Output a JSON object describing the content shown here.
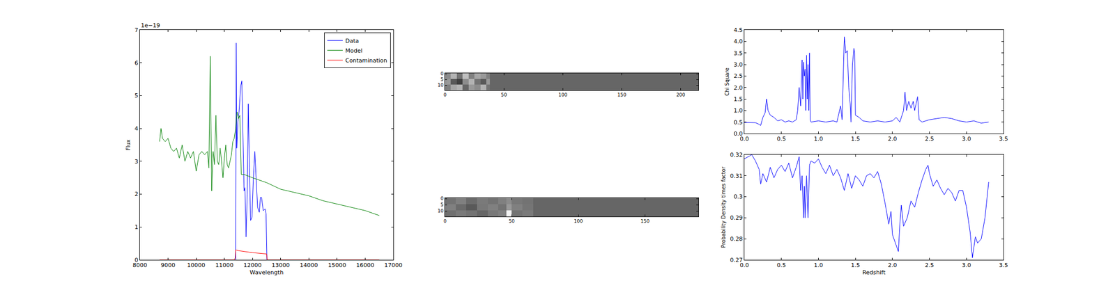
{
  "chart_data": [
    {
      "type": "line",
      "xlabel": "Wavelength",
      "ylabel": "Flux",
      "xlim": [
        8000,
        17000
      ],
      "xticks": [
        8000,
        9000,
        10000,
        11000,
        12000,
        13000,
        14000,
        15000,
        16000,
        17000
      ],
      "ylim": [
        0,
        7
      ],
      "yticks": [
        0,
        1,
        2,
        3,
        4,
        5,
        6,
        7
      ],
      "annotations": [
        "1e−19"
      ],
      "legend": "upper right",
      "series": [
        {
          "name": "Data",
          "color": "#0000ff",
          "x": [
            11400,
            11420,
            11440,
            11480,
            11520,
            11580,
            11620,
            11660,
            11700,
            11730,
            11770,
            11810,
            11850,
            11890,
            11930,
            11980,
            12030,
            12080,
            12120,
            12180,
            12240,
            12280,
            12320,
            12380,
            12450,
            12480,
            12510
          ],
          "values": [
            0,
            6.6,
            3.4,
            4.2,
            4.5,
            5.3,
            5.45,
            4.0,
            2.1,
            2.2,
            0.7,
            2.0,
            4.75,
            2.8,
            1.2,
            1.3,
            2.5,
            3.3,
            2.6,
            1.6,
            1.45,
            1.9,
            1.9,
            1.5,
            1.55,
            1.4,
            0
          ]
        },
        {
          "name": "Model",
          "color": "#008000",
          "x": [
            8700,
            8750,
            8800,
            8900,
            9000,
            9100,
            9200,
            9300,
            9400,
            9500,
            9600,
            9700,
            9800,
            9900,
            10000,
            10100,
            10200,
            10300,
            10400,
            10450,
            10500,
            10550,
            10600,
            10650,
            10700,
            10750,
            10800,
            10850,
            10900,
            10950,
            11000,
            11050,
            11100,
            11150,
            11200,
            11250,
            11300,
            11350,
            11400,
            11450,
            11500,
            11550,
            11600,
            11700,
            12000,
            12500,
            13000,
            13500,
            14000,
            14500,
            15000,
            15500,
            16000,
            16500
          ],
          "values": [
            3.6,
            4.0,
            3.7,
            3.6,
            3.7,
            3.4,
            3.3,
            3.4,
            3.1,
            3.5,
            3.0,
            3.3,
            3.1,
            3.3,
            2.7,
            3.2,
            3.3,
            3.2,
            3.3,
            2.8,
            6.2,
            2.1,
            3.3,
            2.9,
            4.4,
            3.0,
            2.9,
            3.4,
            3.0,
            2.5,
            3.1,
            3.5,
            2.9,
            2.8,
            3.0,
            3.2,
            3.6,
            3.7,
            4.0,
            4.5,
            4.3,
            4.4,
            2.6,
            2.6,
            2.5,
            2.35,
            2.15,
            2.05,
            1.95,
            1.8,
            1.7,
            1.6,
            1.5,
            1.35
          ]
        },
        {
          "name": "Contamination",
          "color": "#ff0000",
          "x": [
            8700,
            11350,
            11380,
            11400,
            11420,
            11500,
            12000,
            12500,
            12520,
            16500
          ],
          "values": [
            0,
            0,
            0.05,
            0.3,
            0.3,
            0.28,
            0.22,
            0.18,
            0,
            0
          ]
        }
      ]
    },
    {
      "type": "heatmap",
      "xlim": [
        0,
        215
      ],
      "xticks": [
        0,
        50,
        100,
        150,
        200
      ],
      "ylim": [
        14.5,
        -0.5
      ],
      "yticks": [
        0,
        5,
        10
      ],
      "zlim": [
        0,
        1
      ],
      "x_edges": [
        0,
        5,
        10,
        15,
        20,
        25,
        30,
        35,
        38,
        215
      ],
      "y_edges": [
        -0.5,
        4.5,
        9.5,
        14.5
      ],
      "cells": [
        [
          0.55,
          0.7,
          0.45,
          0.75,
          0.5,
          0.65,
          0.6,
          0.5,
          0.4
        ],
        [
          0.6,
          0.35,
          0.25,
          0.55,
          0.7,
          0.45,
          0.35,
          0.6,
          0.4
        ],
        [
          0.5,
          0.65,
          0.7,
          0.4,
          0.6,
          0.55,
          0.7,
          0.45,
          0.4
        ]
      ]
    },
    {
      "type": "heatmap",
      "xlim": [
        0,
        190
      ],
      "xticks": [
        0,
        50,
        100,
        150
      ],
      "ylim": [
        14.5,
        -0.5
      ],
      "yticks": [
        0,
        5,
        10
      ],
      "zlim": [
        0,
        1
      ],
      "x_edges": [
        0,
        8,
        16,
        24,
        32,
        40,
        46,
        50,
        58,
        66,
        190
      ],
      "y_edges": [
        -0.5,
        4.5,
        9.5,
        14.5
      ],
      "cells": [
        [
          0.45,
          0.5,
          0.42,
          0.48,
          0.45,
          0.5,
          0.55,
          0.47,
          0.45,
          0.4
        ],
        [
          0.5,
          0.42,
          0.35,
          0.47,
          0.5,
          0.45,
          0.6,
          0.5,
          0.46,
          0.4
        ],
        [
          0.44,
          0.48,
          0.45,
          0.4,
          0.47,
          0.5,
          0.95,
          0.45,
          0.48,
          0.4
        ]
      ]
    },
    {
      "type": "line",
      "ylabel": "Chi Square",
      "xlim": [
        0,
        3.5
      ],
      "xticks": [
        {
          "value": 0,
          "label": "0.0"
        },
        0.5,
        {
          "value": 1,
          "label": "1.0"
        },
        1.5,
        {
          "value": 2,
          "label": "2.0"
        },
        2.5,
        {
          "value": 3,
          "label": "3.0"
        },
        3.5
      ],
      "ylim": [
        0,
        4.5
      ],
      "yticks": [
        {
          "value": 0,
          "label": "0.0"
        },
        0.5,
        {
          "value": 1,
          "label": "1.0"
        },
        1.5,
        {
          "value": 2,
          "label": "2.0"
        },
        2.5,
        {
          "value": 3,
          "label": "3.0"
        },
        3.5,
        {
          "value": 4,
          "label": "4.0"
        },
        4.5
      ],
      "series": [
        {
          "color": "#0000ff",
          "x": [
            0.0,
            0.1,
            0.15,
            0.2,
            0.22,
            0.25,
            0.28,
            0.3,
            0.32,
            0.35,
            0.4,
            0.45,
            0.5,
            0.55,
            0.6,
            0.65,
            0.7,
            0.72,
            0.74,
            0.76,
            0.78,
            0.79,
            0.8,
            0.81,
            0.82,
            0.83,
            0.84,
            0.85,
            0.86,
            0.87,
            0.88,
            0.89,
            0.9,
            1.0,
            1.1,
            1.2,
            1.25,
            1.3,
            1.32,
            1.34,
            1.35,
            1.37,
            1.39,
            1.41,
            1.43,
            1.44,
            1.46,
            1.48,
            1.49,
            1.5,
            1.55,
            1.6,
            1.7,
            1.8,
            1.9,
            2.0,
            2.05,
            2.1,
            2.15,
            2.17,
            2.19,
            2.22,
            2.25,
            2.28,
            2.3,
            2.32,
            2.34,
            2.36,
            2.4,
            2.45,
            2.5,
            2.6,
            2.7,
            2.8,
            2.9,
            3.0,
            3.1,
            3.2,
            3.3
          ],
          "values": [
            0.48,
            0.48,
            0.47,
            0.4,
            0.35,
            0.7,
            0.9,
            1.5,
            1.0,
            0.8,
            0.7,
            0.55,
            0.6,
            0.5,
            0.55,
            0.5,
            0.6,
            1.0,
            2.0,
            1.2,
            3.2,
            1.5,
            3.1,
            2.5,
            2.8,
            1.0,
            3.4,
            1.5,
            3.0,
            1.0,
            3.5,
            0.6,
            0.5,
            0.55,
            0.5,
            0.55,
            0.5,
            1.2,
            0.6,
            3.0,
            4.2,
            3.5,
            3.6,
            2.0,
            1.3,
            0.5,
            3.0,
            3.7,
            3.5,
            0.8,
            0.7,
            0.55,
            0.5,
            0.55,
            0.5,
            0.55,
            0.7,
            0.5,
            1.0,
            1.8,
            1.0,
            1.4,
            1.1,
            1.4,
            1.0,
            1.3,
            1.6,
            0.6,
            0.5,
            0.55,
            0.6,
            0.65,
            0.7,
            0.65,
            0.55,
            0.5,
            0.55,
            0.45,
            0.5
          ]
        }
      ]
    },
    {
      "type": "line",
      "xlabel": "Redshift",
      "ylabel": "Probability Density times factor",
      "xlim": [
        0,
        3.5
      ],
      "xticks": [
        {
          "value": 0,
          "label": "0.0"
        },
        0.5,
        {
          "value": 1,
          "label": "1.0"
        },
        1.5,
        {
          "value": 2,
          "label": "2.0"
        },
        2.5,
        {
          "value": 3,
          "label": "3.0"
        },
        3.5
      ],
      "ylim": [
        0.27,
        0.32
      ],
      "yticks": [
        0.27,
        0.28,
        0.29,
        0.3,
        0.31,
        0.32
      ],
      "series": [
        {
          "color": "#0000ff",
          "x": [
            0.0,
            0.05,
            0.1,
            0.15,
            0.2,
            0.22,
            0.25,
            0.3,
            0.35,
            0.4,
            0.45,
            0.5,
            0.55,
            0.6,
            0.65,
            0.7,
            0.74,
            0.76,
            0.78,
            0.8,
            0.81,
            0.82,
            0.84,
            0.86,
            0.88,
            0.9,
            0.95,
            1.0,
            1.05,
            1.1,
            1.15,
            1.2,
            1.25,
            1.3,
            1.35,
            1.4,
            1.45,
            1.5,
            1.55,
            1.6,
            1.65,
            1.7,
            1.75,
            1.8,
            1.85,
            1.9,
            1.95,
            1.98,
            2.0,
            2.05,
            2.08,
            2.1,
            2.12,
            2.15,
            2.2,
            2.25,
            2.3,
            2.35,
            2.4,
            2.45,
            2.48,
            2.5,
            2.55,
            2.6,
            2.65,
            2.7,
            2.75,
            2.8,
            2.85,
            2.9,
            2.95,
            3.0,
            3.05,
            3.08,
            3.12,
            3.15,
            3.2,
            3.25,
            3.3
          ],
          "values": [
            0.318,
            0.319,
            0.32,
            0.317,
            0.313,
            0.306,
            0.311,
            0.307,
            0.314,
            0.309,
            0.313,
            0.315,
            0.312,
            0.316,
            0.309,
            0.314,
            0.319,
            0.303,
            0.31,
            0.29,
            0.305,
            0.29,
            0.31,
            0.29,
            0.315,
            0.317,
            0.316,
            0.318,
            0.314,
            0.311,
            0.315,
            0.31,
            0.313,
            0.309,
            0.303,
            0.311,
            0.304,
            0.31,
            0.308,
            0.305,
            0.31,
            0.311,
            0.309,
            0.312,
            0.306,
            0.297,
            0.287,
            0.293,
            0.282,
            0.277,
            0.274,
            0.287,
            0.296,
            0.286,
            0.29,
            0.298,
            0.295,
            0.302,
            0.308,
            0.313,
            0.315,
            0.311,
            0.305,
            0.308,
            0.304,
            0.301,
            0.304,
            0.302,
            0.298,
            0.303,
            0.303,
            0.295,
            0.283,
            0.271,
            0.281,
            0.278,
            0.28,
            0.29,
            0.307
          ]
        }
      ]
    }
  ]
}
